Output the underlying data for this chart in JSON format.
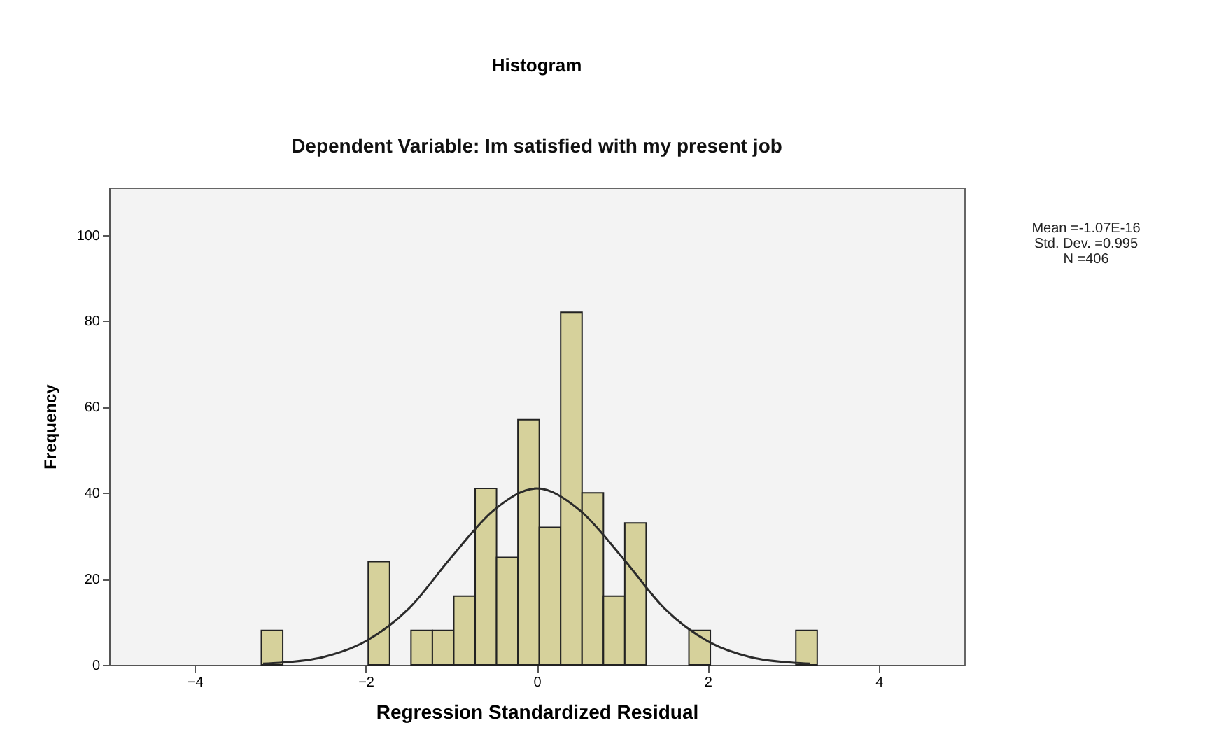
{
  "chart_data": {
    "type": "histogram",
    "title": "Histogram",
    "subtitle": "Dependent Variable: Im satisfied with my present job",
    "xlabel": "Regression Standardized Residual",
    "ylabel": "Frequency",
    "bins": [
      -3.22,
      -2.97,
      -2.72,
      -2.47,
      -2.22,
      -1.97,
      -1.72,
      -1.47,
      -1.22,
      -0.97,
      -0.72,
      -0.47,
      -0.22,
      0.03,
      0.28,
      0.53,
      0.78,
      1.03,
      1.28,
      1.53,
      1.78,
      2.03,
      2.28,
      2.53,
      2.78,
      3.03,
      3.28
    ],
    "values": [
      8,
      0,
      0,
      0,
      0,
      24,
      0,
      8,
      8,
      16,
      41,
      25,
      57,
      32,
      82,
      40,
      16,
      33,
      0,
      0,
      8,
      0,
      0,
      0,
      0,
      8
    ],
    "color": "#d6d19b",
    "series": [
      {
        "type": "line",
        "color": "#2b2b2b",
        "x": [
          -3.2,
          -3,
          -2.5,
          -2,
          -1.5,
          -1,
          -0.5,
          0,
          0.5,
          1,
          1.5,
          2,
          2.5,
          3,
          3.2
        ],
        "values": [
          0.3,
          0.5,
          1.8,
          5.5,
          13,
          25,
          36,
          41,
          36,
          25,
          13,
          5.5,
          1.8,
          0.5,
          0.3
        ]
      }
    ],
    "xlim": [
      -5,
      5
    ],
    "xticks": [
      -4,
      -2,
      0,
      2,
      4
    ],
    "ylim": [
      0,
      111
    ],
    "yticks": [
      0,
      20,
      40,
      60,
      80,
      100
    ],
    "grid": false,
    "annotations": [
      "Mean =-1.07E-16",
      "Std. Dev. =0.995",
      "N =406"
    ]
  }
}
